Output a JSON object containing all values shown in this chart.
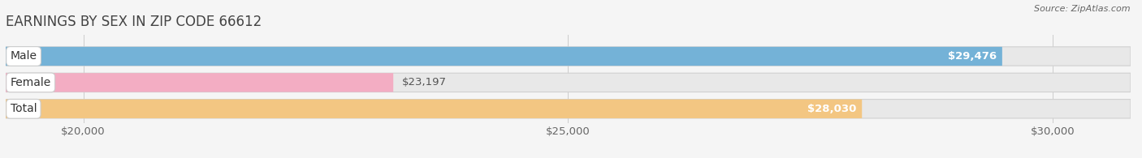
{
  "title": "EARNINGS BY SEX IN ZIP CODE 66612",
  "source": "Source: ZipAtlas.com",
  "categories": [
    "Male",
    "Female",
    "Total"
  ],
  "values": [
    29476,
    23197,
    28030
  ],
  "bar_colors": [
    "#6aaed6",
    "#f4a8c0",
    "#f5c47a"
  ],
  "label_colors": [
    "#ffffff",
    "#555555",
    "#ffffff"
  ],
  "value_colors": [
    "#ffffff",
    "#555555",
    "#ffffff"
  ],
  "xmin": 19200,
  "xmax": 30800,
  "xticks": [
    20000,
    25000,
    30000
  ],
  "xtick_labels": [
    "$20,000",
    "$25,000",
    "$30,000"
  ],
  "bar_height": 0.72,
  "title_fontsize": 12,
  "tick_fontsize": 9.5,
  "value_fontsize": 9.5,
  "category_fontsize": 10,
  "background_color": "#f5f5f5",
  "track_color": "#e8e8e8"
}
